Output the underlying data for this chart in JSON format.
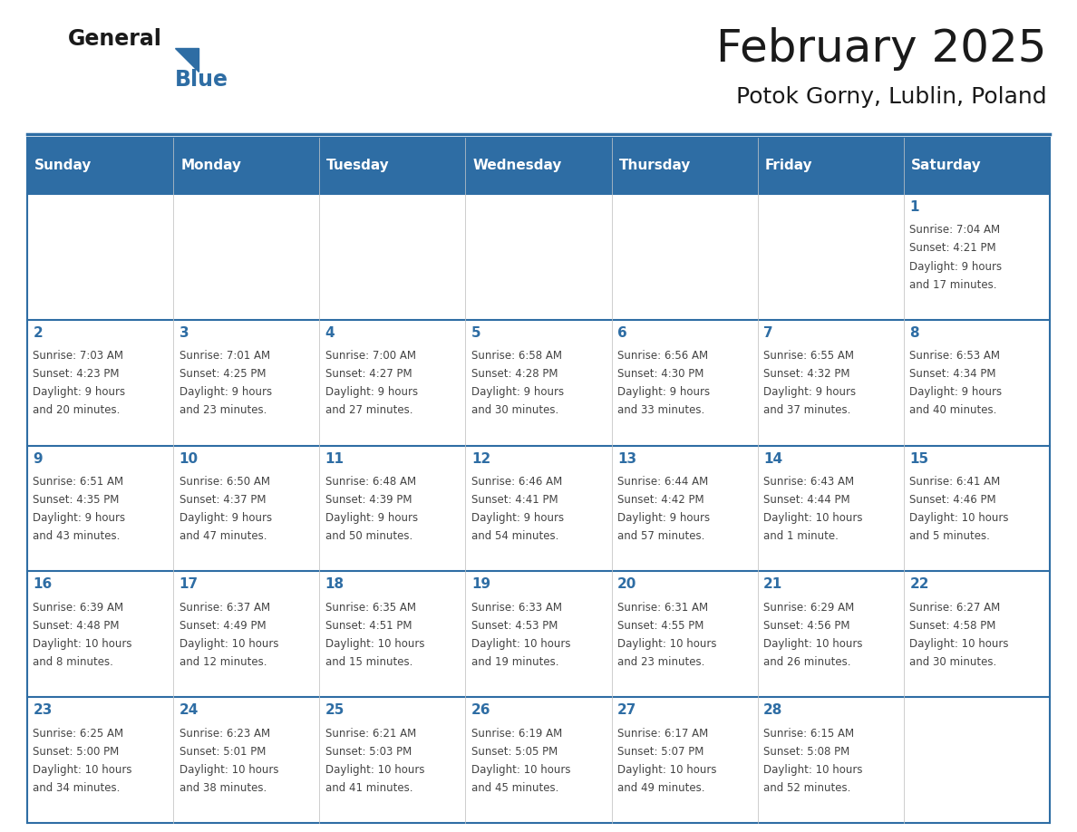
{
  "title": "February 2025",
  "subtitle": "Potok Gorny, Lublin, Poland",
  "header_color": "#2E6DA4",
  "header_text_color": "#FFFFFF",
  "cell_bg_color": "#FFFFFF",
  "border_color": "#2E6DA4",
  "grid_line_color": "#CCCCCC",
  "day_headers": [
    "Sunday",
    "Monday",
    "Tuesday",
    "Wednesday",
    "Thursday",
    "Friday",
    "Saturday"
  ],
  "title_color": "#1a1a1a",
  "subtitle_color": "#1a1a1a",
  "text_color": "#444444",
  "day_num_color": "#2E6DA4",
  "logo_general_color": "#1a1a1a",
  "logo_blue_color": "#2E6DA4",
  "logo_triangle_color": "#2E6DA4",
  "header_font_size": 11,
  "day_num_font_size": 11,
  "cell_text_font_size": 8.5,
  "title_font_size": 36,
  "subtitle_font_size": 18,
  "logo_font_size": 17,
  "calendar": [
    [
      null,
      null,
      null,
      null,
      null,
      null,
      {
        "day": 1,
        "sunrise": "7:04 AM",
        "sunset": "4:21 PM",
        "daylight": "9 hours",
        "daylight2": "and 17 minutes."
      }
    ],
    [
      {
        "day": 2,
        "sunrise": "7:03 AM",
        "sunset": "4:23 PM",
        "daylight": "9 hours",
        "daylight2": "and 20 minutes."
      },
      {
        "day": 3,
        "sunrise": "7:01 AM",
        "sunset": "4:25 PM",
        "daylight": "9 hours",
        "daylight2": "and 23 minutes."
      },
      {
        "day": 4,
        "sunrise": "7:00 AM",
        "sunset": "4:27 PM",
        "daylight": "9 hours",
        "daylight2": "and 27 minutes."
      },
      {
        "day": 5,
        "sunrise": "6:58 AM",
        "sunset": "4:28 PM",
        "daylight": "9 hours",
        "daylight2": "and 30 minutes."
      },
      {
        "day": 6,
        "sunrise": "6:56 AM",
        "sunset": "4:30 PM",
        "daylight": "9 hours",
        "daylight2": "and 33 minutes."
      },
      {
        "day": 7,
        "sunrise": "6:55 AM",
        "sunset": "4:32 PM",
        "daylight": "9 hours",
        "daylight2": "and 37 minutes."
      },
      {
        "day": 8,
        "sunrise": "6:53 AM",
        "sunset": "4:34 PM",
        "daylight": "9 hours",
        "daylight2": "and 40 minutes."
      }
    ],
    [
      {
        "day": 9,
        "sunrise": "6:51 AM",
        "sunset": "4:35 PM",
        "daylight": "9 hours",
        "daylight2": "and 43 minutes."
      },
      {
        "day": 10,
        "sunrise": "6:50 AM",
        "sunset": "4:37 PM",
        "daylight": "9 hours",
        "daylight2": "and 47 minutes."
      },
      {
        "day": 11,
        "sunrise": "6:48 AM",
        "sunset": "4:39 PM",
        "daylight": "9 hours",
        "daylight2": "and 50 minutes."
      },
      {
        "day": 12,
        "sunrise": "6:46 AM",
        "sunset": "4:41 PM",
        "daylight": "9 hours",
        "daylight2": "and 54 minutes."
      },
      {
        "day": 13,
        "sunrise": "6:44 AM",
        "sunset": "4:42 PM",
        "daylight": "9 hours",
        "daylight2": "and 57 minutes."
      },
      {
        "day": 14,
        "sunrise": "6:43 AM",
        "sunset": "4:44 PM",
        "daylight": "10 hours",
        "daylight2": "and 1 minute."
      },
      {
        "day": 15,
        "sunrise": "6:41 AM",
        "sunset": "4:46 PM",
        "daylight": "10 hours",
        "daylight2": "and 5 minutes."
      }
    ],
    [
      {
        "day": 16,
        "sunrise": "6:39 AM",
        "sunset": "4:48 PM",
        "daylight": "10 hours",
        "daylight2": "and 8 minutes."
      },
      {
        "day": 17,
        "sunrise": "6:37 AM",
        "sunset": "4:49 PM",
        "daylight": "10 hours",
        "daylight2": "and 12 minutes."
      },
      {
        "day": 18,
        "sunrise": "6:35 AM",
        "sunset": "4:51 PM",
        "daylight": "10 hours",
        "daylight2": "and 15 minutes."
      },
      {
        "day": 19,
        "sunrise": "6:33 AM",
        "sunset": "4:53 PM",
        "daylight": "10 hours",
        "daylight2": "and 19 minutes."
      },
      {
        "day": 20,
        "sunrise": "6:31 AM",
        "sunset": "4:55 PM",
        "daylight": "10 hours",
        "daylight2": "and 23 minutes."
      },
      {
        "day": 21,
        "sunrise": "6:29 AM",
        "sunset": "4:56 PM",
        "daylight": "10 hours",
        "daylight2": "and 26 minutes."
      },
      {
        "day": 22,
        "sunrise": "6:27 AM",
        "sunset": "4:58 PM",
        "daylight": "10 hours",
        "daylight2": "and 30 minutes."
      }
    ],
    [
      {
        "day": 23,
        "sunrise": "6:25 AM",
        "sunset": "5:00 PM",
        "daylight": "10 hours",
        "daylight2": "and 34 minutes."
      },
      {
        "day": 24,
        "sunrise": "6:23 AM",
        "sunset": "5:01 PM",
        "daylight": "10 hours",
        "daylight2": "and 38 minutes."
      },
      {
        "day": 25,
        "sunrise": "6:21 AM",
        "sunset": "5:03 PM",
        "daylight": "10 hours",
        "daylight2": "and 41 minutes."
      },
      {
        "day": 26,
        "sunrise": "6:19 AM",
        "sunset": "5:05 PM",
        "daylight": "10 hours",
        "daylight2": "and 45 minutes."
      },
      {
        "day": 27,
        "sunrise": "6:17 AM",
        "sunset": "5:07 PM",
        "daylight": "10 hours",
        "daylight2": "and 49 minutes."
      },
      {
        "day": 28,
        "sunrise": "6:15 AM",
        "sunset": "5:08 PM",
        "daylight": "10 hours",
        "daylight2": "and 52 minutes."
      },
      null
    ]
  ]
}
